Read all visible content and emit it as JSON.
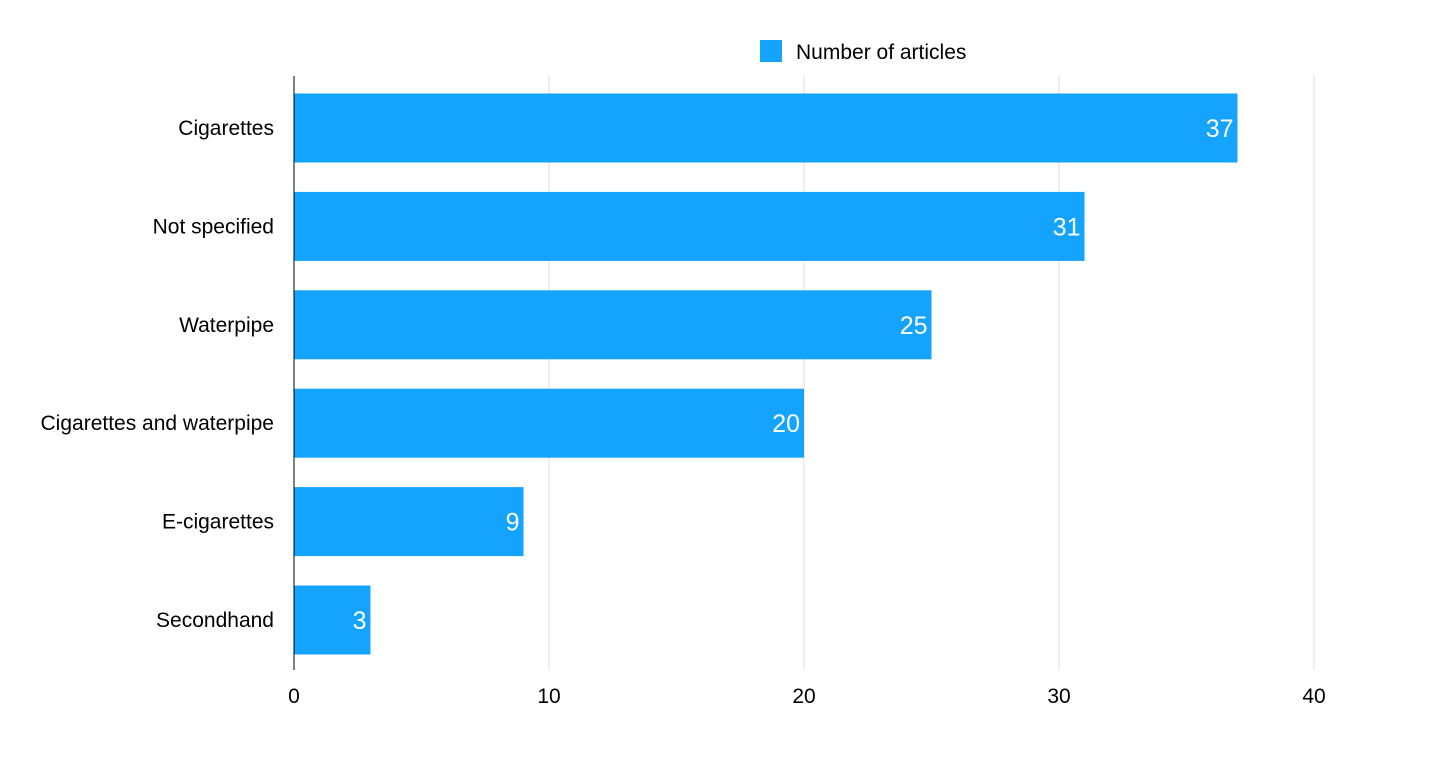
{
  "chart_data": {
    "type": "bar",
    "orientation": "horizontal",
    "title": "",
    "xlabel": "",
    "ylabel": "",
    "categories": [
      "Cigarettes",
      "Not specified",
      "Waterpipe",
      "Cigarettes and waterpipe",
      "E-cigarettes",
      "Secondhand"
    ],
    "series": [
      {
        "name": "Number of articles",
        "color": "#14A3FF",
        "values": [
          37,
          31,
          25,
          20,
          9,
          3
        ]
      }
    ],
    "xlim": [
      0,
      40
    ],
    "xticks": [
      0,
      10,
      20,
      30,
      40
    ],
    "grid": "vertical",
    "legend": "top-center",
    "data_labels": "inside-end"
  }
}
